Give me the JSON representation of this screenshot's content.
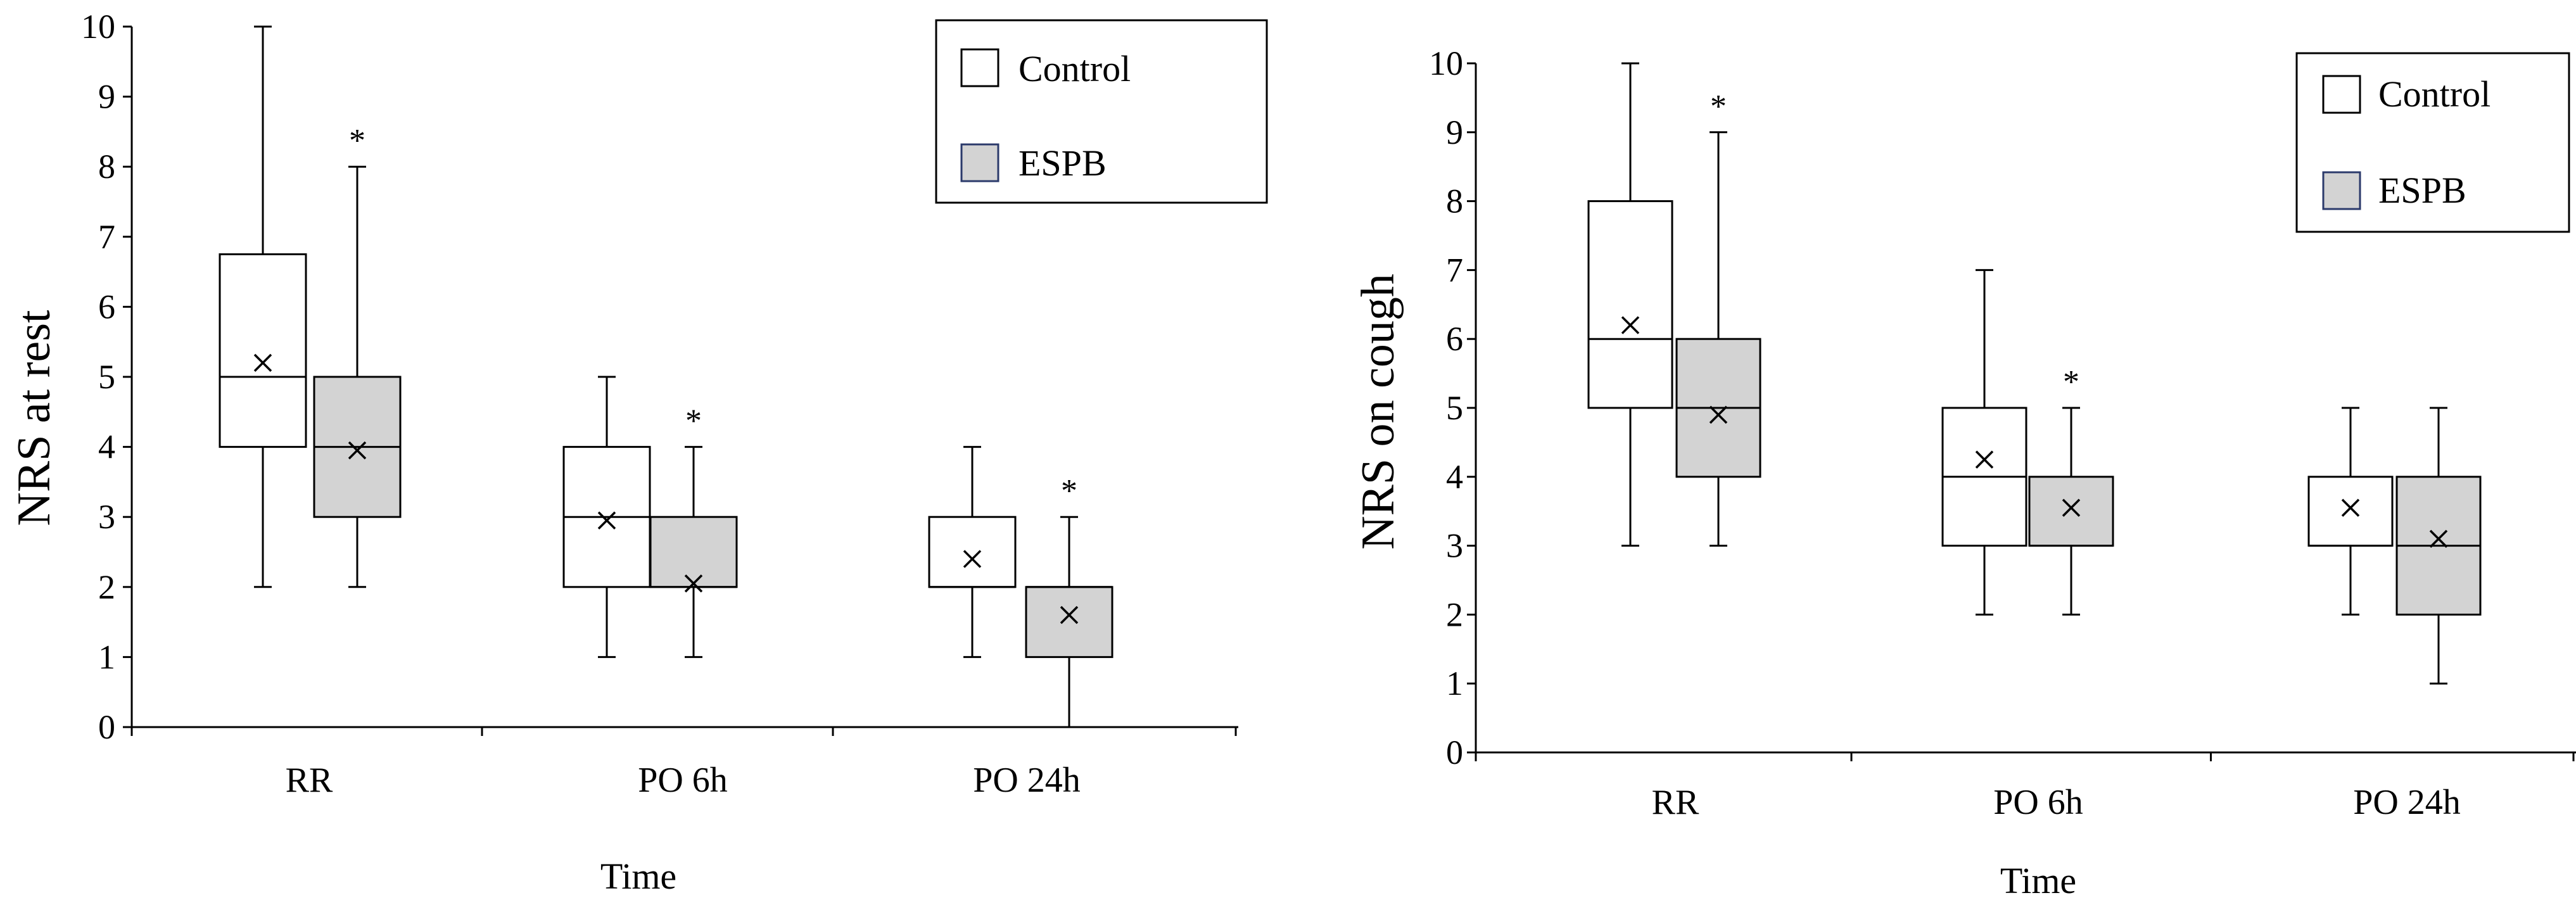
{
  "chart_data": [
    {
      "type": "box",
      "ylabel": "NRS at rest",
      "xlabel": "Time",
      "ylim": [
        0,
        10
      ],
      "yticks": [
        "0",
        "1",
        "2",
        "3",
        "4",
        "5",
        "6",
        "7",
        "8",
        "9",
        "10"
      ],
      "categories": [
        "RR",
        "PO 6h",
        "PO 24h"
      ],
      "legend": {
        "position": "top-right",
        "entries": [
          "Control",
          "ESPB"
        ]
      },
      "series": [
        {
          "name": "Control",
          "color": "#ffffff",
          "boxes": [
            {
              "min": 2,
              "q1": 4,
              "median": 5,
              "q3": 6.75,
              "max": 10,
              "mean": 5.2,
              "star": ""
            },
            {
              "min": 1,
              "q1": 2,
              "median": 3,
              "q3": 4,
              "max": 5,
              "mean": 2.95,
              "star": ""
            },
            {
              "min": 1,
              "q1": 2,
              "median": 2,
              "q3": 3,
              "max": 4,
              "mean": 2.4,
              "star": ""
            }
          ]
        },
        {
          "name": "ESPB",
          "color": "#d3d3d3",
          "boxes": [
            {
              "min": 2,
              "q1": 3,
              "median": 4,
              "q3": 5,
              "max": 8,
              "mean": 3.95,
              "star": "*"
            },
            {
              "min": 1,
              "q1": 2,
              "median": 2,
              "q3": 3,
              "max": 4,
              "mean": 2.05,
              "star": "*"
            },
            {
              "min": 0,
              "q1": 1,
              "median": 2,
              "q3": 2,
              "max": 3,
              "mean": 1.6,
              "star": "*"
            }
          ]
        }
      ]
    },
    {
      "type": "box",
      "ylabel": "NRS on cough",
      "xlabel": "Time",
      "ylim": [
        0,
        10
      ],
      "yticks": [
        "0",
        "1",
        "2",
        "3",
        "4",
        "5",
        "6",
        "7",
        "8",
        "9",
        "10"
      ],
      "categories": [
        "RR",
        "PO 6h",
        "PO 24h"
      ],
      "legend": {
        "position": "top-right",
        "entries": [
          "Control",
          "ESPB"
        ]
      },
      "series": [
        {
          "name": "Control",
          "color": "#ffffff",
          "boxes": [
            {
              "min": 3,
              "q1": 5,
              "median": 6,
              "q3": 8,
              "max": 10,
              "mean": 6.2,
              "star": ""
            },
            {
              "min": 2,
              "q1": 3,
              "median": 4,
              "q3": 5,
              "max": 7,
              "mean": 4.25,
              "star": ""
            },
            {
              "min": 2,
              "q1": 3,
              "median": 3,
              "q3": 4,
              "max": 5,
              "mean": 3.55,
              "star": ""
            }
          ]
        },
        {
          "name": "ESPB",
          "color": "#d3d3d3",
          "boxes": [
            {
              "min": 3,
              "q1": 4,
              "median": 5,
              "q3": 6,
              "max": 9,
              "mean": 4.9,
              "star": "*"
            },
            {
              "min": 2,
              "q1": 3,
              "median": 3,
              "q3": 4,
              "max": 5,
              "mean": 3.55,
              "star": "*"
            },
            {
              "min": 1,
              "q1": 2,
              "median": 3,
              "q3": 4,
              "max": 5,
              "mean": 3.1,
              "star": ""
            }
          ]
        }
      ]
    }
  ]
}
